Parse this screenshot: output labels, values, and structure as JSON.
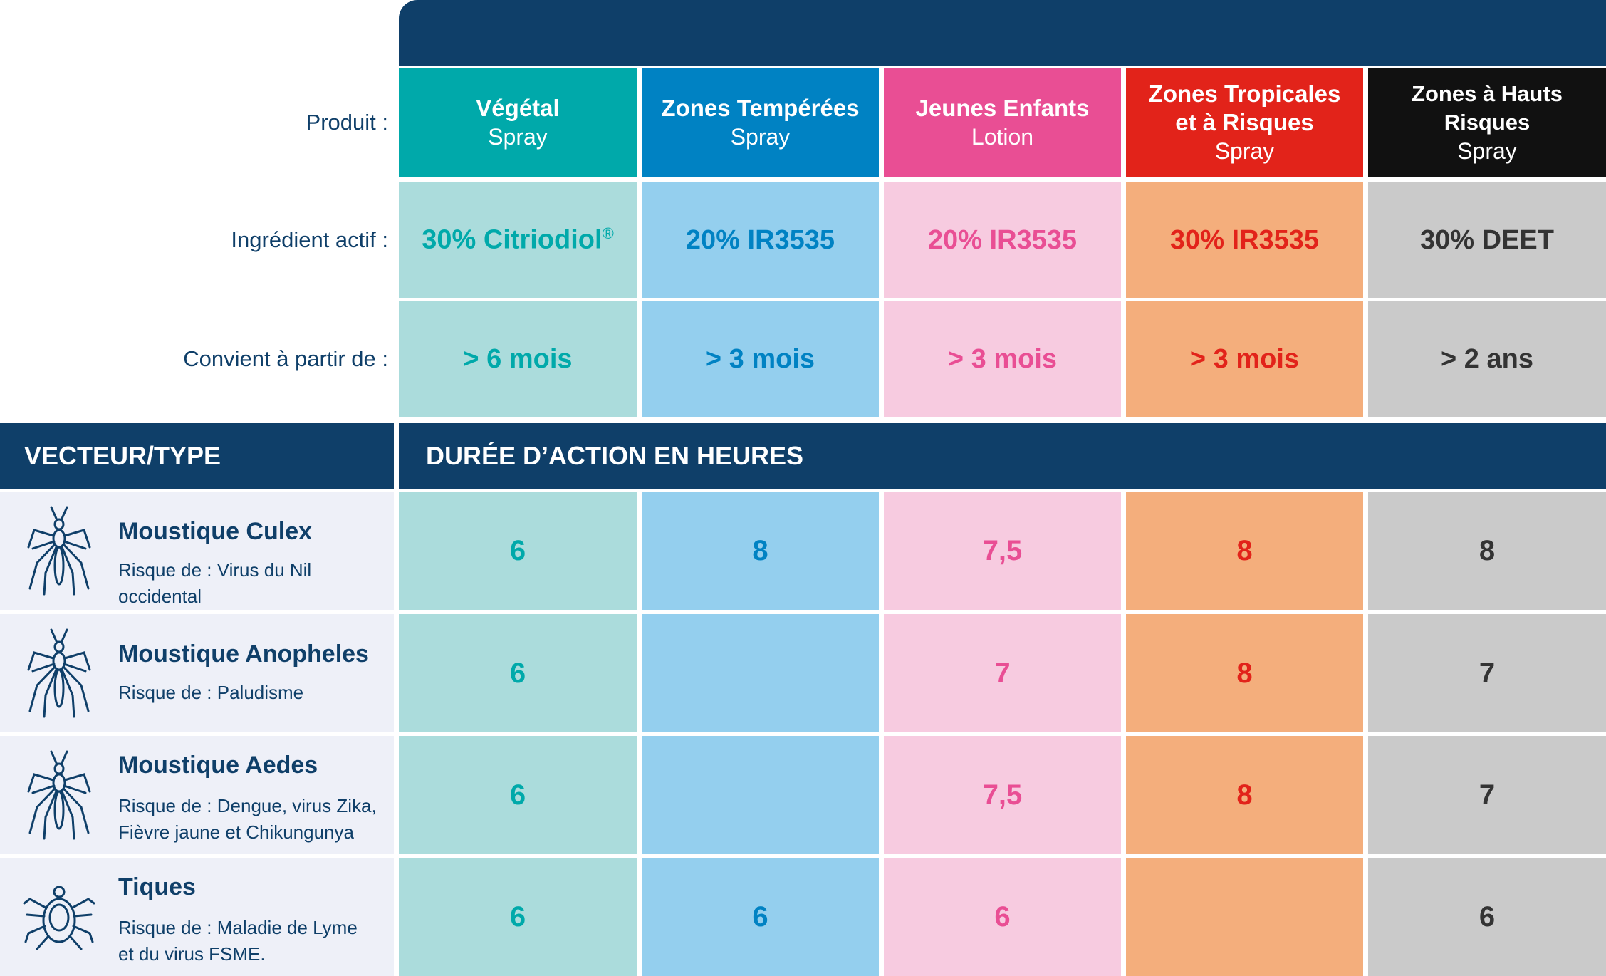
{
  "header": {
    "row_labels": {
      "product": "Produit :",
      "ingredient": "Ingrédient actif :",
      "age": "Convient à partir de :"
    },
    "vector_heading": "VECTEUR/TYPE",
    "duration_heading": "DURÉE D’ACTION EN HEURES"
  },
  "colors": {
    "navy": "#0f3f69",
    "teal": "#00a9aa",
    "teal_light": "#abdcdc",
    "blue": "#0082c3",
    "blue_light": "#94cfee",
    "pink": "#e94e94",
    "pink_light": "#f7cbe0",
    "red": "#e2231a",
    "red_light": "#f4ae7c",
    "black": "#111111",
    "grey_light": "#cacaca"
  },
  "products": [
    {
      "name": "Végétal",
      "form": "Spray",
      "ingredient": "30% Citriodiol",
      "ingredient_mark": "®",
      "age": "> 6 mois"
    },
    {
      "name": "Zones Tempérées",
      "form": "Spray",
      "ingredient": "20% IR3535",
      "ingredient_mark": "",
      "age": "> 3 mois"
    },
    {
      "name": "Jeunes Enfants",
      "form": "Lotion",
      "ingredient": "20% IR3535",
      "ingredient_mark": "",
      "age": "> 3 mois"
    },
    {
      "name": "Zones Tropicales et à Risques",
      "form": "Spray",
      "ingredient": "30% IR3535",
      "ingredient_mark": "",
      "age": "> 3 mois"
    },
    {
      "name": "Zones à Hauts Risques",
      "form": "Spray",
      "ingredient": "30% DEET",
      "ingredient_mark": "",
      "age": "> 2 ans"
    }
  ],
  "vectors": [
    {
      "name": "Moustique Culex",
      "risk": "Risque de : Virus du Nil occidental",
      "icon": "mosquito-icon",
      "durations": [
        "6",
        "8",
        "7,5",
        "8",
        "8"
      ]
    },
    {
      "name": "Moustique Anopheles",
      "risk": "Risque de : Paludisme",
      "icon": "mosquito-icon",
      "durations": [
        "6",
        "",
        "7",
        "8",
        "7"
      ]
    },
    {
      "name": "Moustique Aedes",
      "risk": "Risque de : Dengue, virus Zika,\nFièvre jaune et Chikungunya",
      "icon": "mosquito-icon",
      "durations": [
        "6",
        "",
        "7,5",
        "8",
        "7"
      ]
    },
    {
      "name": "Tiques",
      "risk": "Risque de : Maladie de Lyme\net du virus FSME.",
      "icon": "tick-icon",
      "durations": [
        "6",
        "6",
        "6",
        "",
        "6"
      ]
    }
  ]
}
